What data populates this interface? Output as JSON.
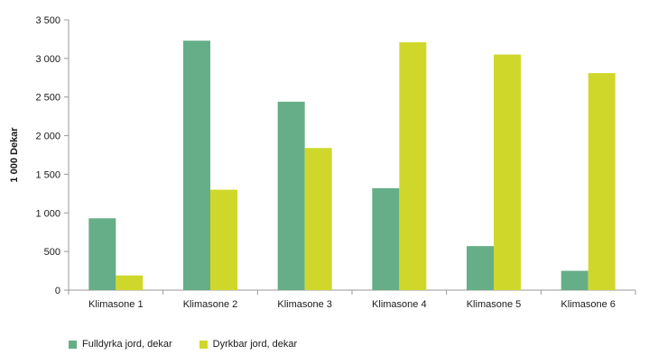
{
  "chart_data": {
    "type": "bar",
    "ylabel": "1 000 Dekar",
    "xlabel": "",
    "ylim": [
      0,
      3500
    ],
    "yticks": [
      0,
      500,
      1000,
      1500,
      2000,
      2500,
      3000,
      3500
    ],
    "ytick_labels": [
      "0",
      "500",
      "1 000",
      "1 500",
      "2 000",
      "2 500",
      "3 000",
      "3 500"
    ],
    "categories": [
      "Klimasone 1",
      "Klimasone 2",
      "Klimasone 3",
      "Klimasone 4",
      "Klimasone 5",
      "Klimasone 6"
    ],
    "series": [
      {
        "name": "Fulldyrka jord, dekar",
        "color": "#66ae87",
        "values": [
          930,
          3230,
          2440,
          1320,
          570,
          250
        ]
      },
      {
        "name": "Dyrkbar jord, dekar",
        "color": "#cfd82a",
        "values": [
          190,
          1300,
          1840,
          3210,
          3050,
          2810
        ]
      }
    ],
    "grid": false,
    "legend_position": "bottom-left"
  }
}
